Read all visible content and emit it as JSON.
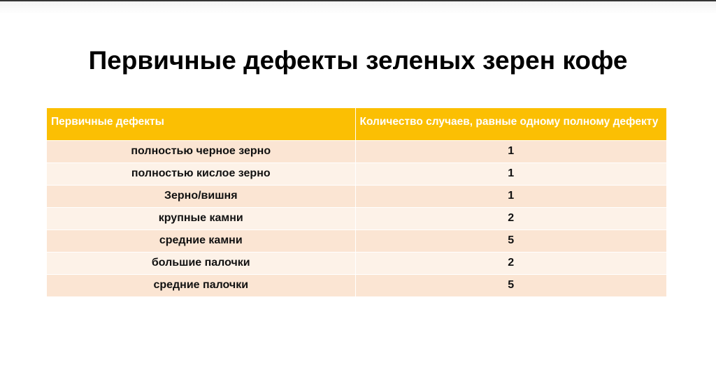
{
  "title": "Первичные дефекты зеленых зерен кофе",
  "colors": {
    "header": "#fbbf03",
    "row_odd": "#fbe5d3",
    "row_even": "#fdf2e8"
  },
  "table": {
    "headers": [
      "Первичные дефекты",
      "Количество случаев, равные одному полному дефекту"
    ],
    "rows": [
      [
        "полностью черное зерно",
        "1"
      ],
      [
        "полностью кислое зерно",
        "1"
      ],
      [
        "Зерно/вишня",
        "1"
      ],
      [
        "крупные камни",
        "2"
      ],
      [
        "средние камни",
        "5"
      ],
      [
        "большие палочки",
        "2"
      ],
      [
        "средние палочки",
        "5"
      ]
    ]
  }
}
